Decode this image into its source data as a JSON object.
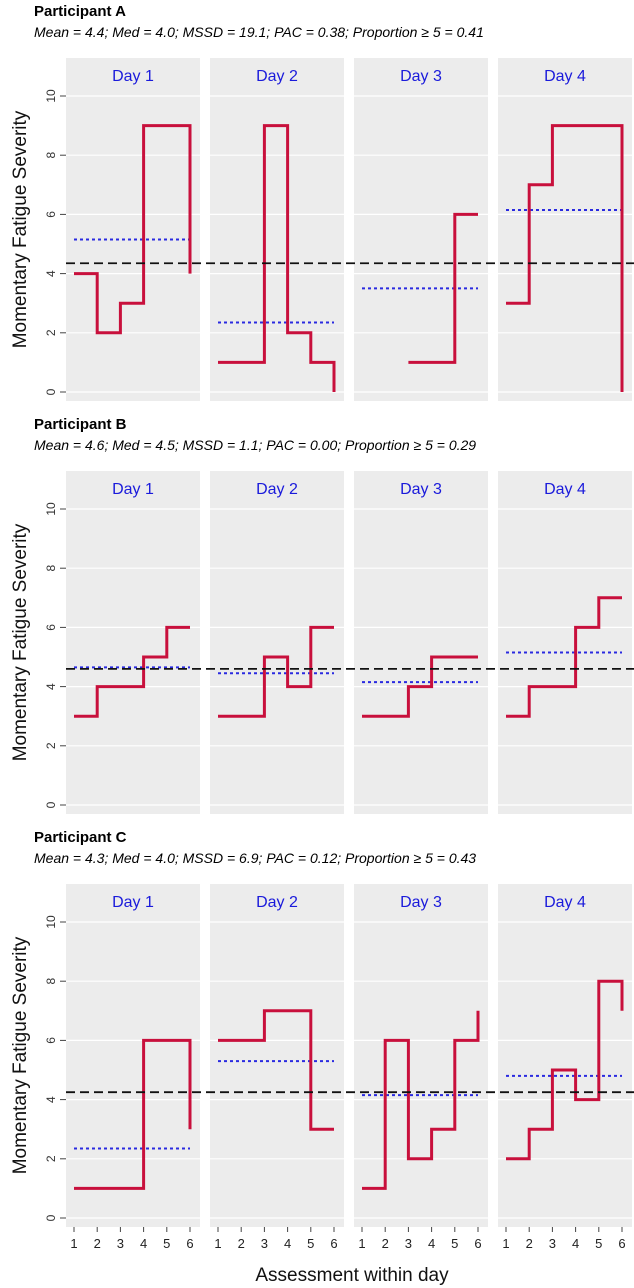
{
  "chart_data": {
    "type": "line",
    "step": true,
    "ylabel": "Momentary Fatigue Severity",
    "xlabel": "Assessment within day",
    "ylim": [
      0,
      10
    ],
    "yticks": [
      "0",
      "2",
      "4",
      "6",
      "8",
      "10"
    ],
    "xticks": [
      "1",
      "2",
      "3",
      "4",
      "5",
      "6"
    ],
    "grid": true,
    "colors": {
      "series": "#c8103c",
      "day_mean": "#2a2ae0",
      "overall_mean": "#111111",
      "panel_bg": "#ececec",
      "day_label": "#1a1adb"
    },
    "panels": [
      {
        "title": "Participant A",
        "stats": "Mean = 4.4; Med = 4.0; MSSD = 19.1; PAC = 0.38; Proportion  ≥ 5 = 0.41",
        "overall_mean": 4.35,
        "days": [
          {
            "label": "Day 1",
            "points": [
              [
                1,
                4
              ],
              [
                2,
                2
              ],
              [
                3,
                3
              ],
              [
                4,
                9
              ],
              [
                5,
                9
              ],
              [
                6,
                4
              ]
            ],
            "day_mean": 5.15
          },
          {
            "label": "Day 2",
            "points": [
              [
                1,
                1
              ],
              [
                2,
                1
              ],
              [
                3,
                9
              ],
              [
                4,
                2
              ],
              [
                5,
                1
              ],
              [
                6,
                0
              ]
            ],
            "day_mean": 2.35
          },
          {
            "label": "Day 3",
            "points": [
              [
                3,
                1
              ],
              [
                4,
                1
              ],
              [
                5,
                6
              ],
              [
                6,
                6
              ]
            ],
            "day_mean": 3.5
          },
          {
            "label": "Day 4",
            "points": [
              [
                1,
                3
              ],
              [
                2,
                7
              ],
              [
                3,
                9
              ],
              [
                4,
                9
              ],
              [
                5,
                9
              ],
              [
                6,
                0
              ]
            ],
            "day_mean": 6.15
          }
        ]
      },
      {
        "title": "Participant B",
        "stats": "Mean = 4.6; Med = 4.5; MSSD = 1.1; PAC = 0.00; Proportion  ≥ 5 = 0.29",
        "overall_mean": 4.6,
        "days": [
          {
            "label": "Day 1",
            "points": [
              [
                1,
                3
              ],
              [
                2,
                4
              ],
              [
                3,
                4
              ],
              [
                4,
                5
              ],
              [
                5,
                6
              ],
              [
                6,
                6
              ]
            ],
            "day_mean": 4.65
          },
          {
            "label": "Day 2",
            "points": [
              [
                1,
                3
              ],
              [
                2,
                3
              ],
              [
                3,
                5
              ],
              [
                4,
                4
              ],
              [
                5,
                6
              ],
              [
                6,
                6
              ]
            ],
            "day_mean": 4.45
          },
          {
            "label": "Day 3",
            "points": [
              [
                1,
                3
              ],
              [
                2,
                3
              ],
              [
                3,
                4
              ],
              [
                4,
                5
              ],
              [
                5,
                5
              ],
              [
                6,
                5
              ]
            ],
            "day_mean": 4.15
          },
          {
            "label": "Day 4",
            "points": [
              [
                1,
                3
              ],
              [
                2,
                4
              ],
              [
                3,
                4
              ],
              [
                4,
                6
              ],
              [
                5,
                7
              ],
              [
                6,
                7
              ]
            ],
            "day_mean": 5.15
          }
        ]
      },
      {
        "title": "Participant C",
        "stats": "Mean = 4.3; Med = 4.0; MSSD = 6.9; PAC = 0.12; Proportion  ≥ 5 = 0.43",
        "overall_mean": 4.25,
        "days": [
          {
            "label": "Day 1",
            "points": [
              [
                1,
                1
              ],
              [
                2,
                1
              ],
              [
                3,
                1
              ],
              [
                4,
                6
              ],
              [
                5,
                6
              ],
              [
                6,
                3
              ]
            ],
            "day_mean": 2.35
          },
          {
            "label": "Day 2",
            "points": [
              [
                1,
                6
              ],
              [
                2,
                6
              ],
              [
                3,
                7
              ],
              [
                4,
                7
              ],
              [
                5,
                3
              ],
              [
                6,
                3
              ]
            ],
            "day_mean": 5.3
          },
          {
            "label": "Day 3",
            "points": [
              [
                1,
                1
              ],
              [
                2,
                6
              ],
              [
                3,
                2
              ],
              [
                4,
                3
              ],
              [
                5,
                6
              ],
              [
                6,
                7
              ]
            ],
            "day_mean": 4.15
          },
          {
            "label": "Day 4",
            "points": [
              [
                1,
                2
              ],
              [
                2,
                3
              ],
              [
                3,
                5
              ],
              [
                4,
                4
              ],
              [
                5,
                8
              ],
              [
                6,
                7
              ]
            ],
            "day_mean": 4.8
          }
        ]
      }
    ]
  }
}
